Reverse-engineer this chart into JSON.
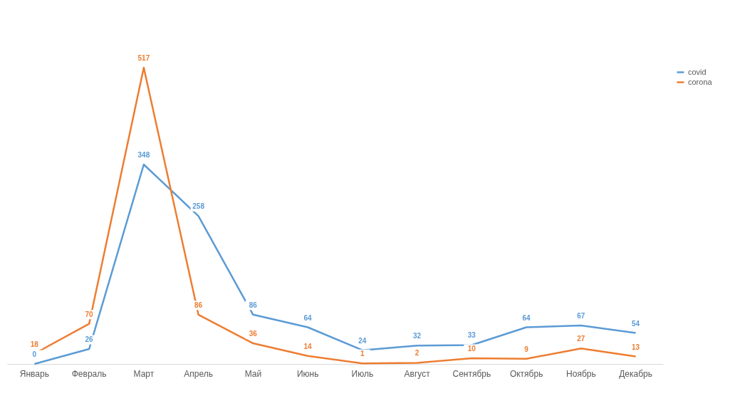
{
  "chart_data": {
    "type": "line",
    "categories": [
      "Январь",
      "Февраль",
      "Март",
      "Апрель",
      "Май",
      "Июнь",
      "Июль",
      "Август",
      "Сентябрь",
      "Октябрь",
      "Ноябрь",
      "Декабрь"
    ],
    "series": [
      {
        "name": "covid",
        "color": "#5b9bd5",
        "values": [
          0,
          26,
          348,
          258,
          86,
          64,
          24,
          32,
          33,
          64,
          67,
          54
        ]
      },
      {
        "name": "corona",
        "color": "#ed7d31",
        "values": [
          18,
          70,
          517,
          86,
          36,
          14,
          1,
          2,
          10,
          9,
          27,
          13
        ]
      }
    ],
    "data_labels": true,
    "legend": "right",
    "grid": false,
    "marker": "none",
    "tick_labels": "x"
  }
}
